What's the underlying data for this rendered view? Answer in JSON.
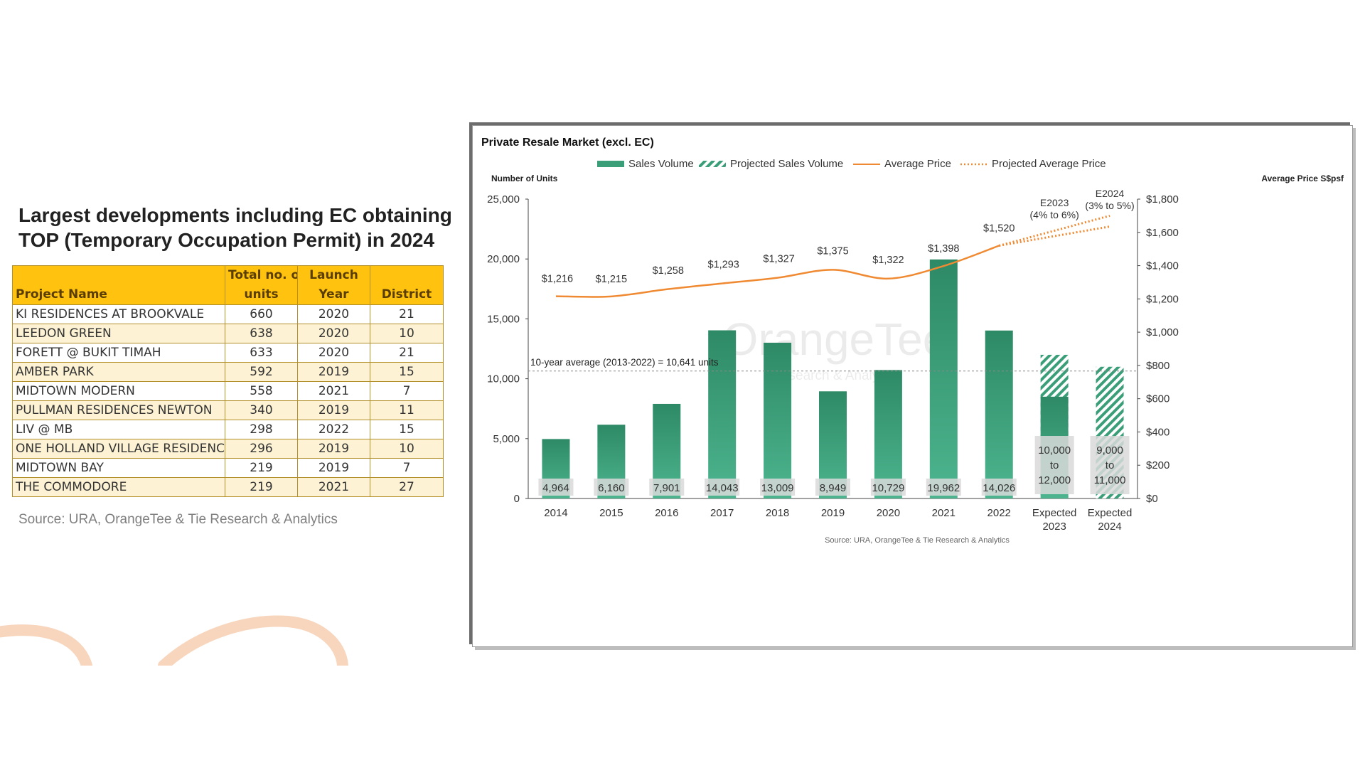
{
  "left": {
    "title_line1": "Largest developments including EC obtaining",
    "title_line2": "TOP (Temporary Occupation Permit) in 2024",
    "table": {
      "headers": {
        "name": [
          "",
          "Project Name"
        ],
        "units": [
          "Total no. of",
          "units"
        ],
        "year": [
          "Launch",
          "Year"
        ],
        "district": [
          "",
          "District"
        ]
      },
      "rows": [
        {
          "name": "KI RESIDENCES AT BROOKVALE",
          "units": "660",
          "year": "2020",
          "district": "21"
        },
        {
          "name": "LEEDON GREEN",
          "units": "638",
          "year": "2020",
          "district": "10"
        },
        {
          "name": "FORETT @ BUKIT TIMAH",
          "units": "633",
          "year": "2020",
          "district": "21"
        },
        {
          "name": "AMBER PARK",
          "units": "592",
          "year": "2019",
          "district": "15"
        },
        {
          "name": "MIDTOWN MODERN",
          "units": "558",
          "year": "2021",
          "district": "7"
        },
        {
          "name": "PULLMAN RESIDENCES NEWTON",
          "units": "340",
          "year": "2019",
          "district": "11"
        },
        {
          "name": "LIV @ MB",
          "units": "298",
          "year": "2022",
          "district": "15"
        },
        {
          "name": "ONE HOLLAND VILLAGE RESIDENCES",
          "units": "296",
          "year": "2019",
          "district": "10"
        },
        {
          "name": "MIDTOWN BAY",
          "units": "219",
          "year": "2019",
          "district": "7"
        },
        {
          "name": "THE COMMODORE",
          "units": "219",
          "year": "2021",
          "district": "27"
        }
      ]
    },
    "source": "Source: URA, OrangeTee & Tie Research & Analytics"
  },
  "colors": {
    "bar": "#3a9e78",
    "bar_dark": "#2e8a66",
    "line": "#f08a32",
    "table_header": "#ffc20e",
    "table_alt_row": "#fdf3d4",
    "squiggle": "#f7d6bd"
  },
  "chart_data": {
    "type": "bar",
    "title": "Private Resale Market (excl. EC)",
    "ylabel": "Number of Units",
    "y2label": "Average Price S$psf",
    "legend": [
      "Sales Volume",
      "Projected Sales Volume",
      "Average Price",
      "Projected Average Price"
    ],
    "legend_position": "top",
    "categories": [
      "2014",
      "2015",
      "2016",
      "2017",
      "2018",
      "2019",
      "2020",
      "2021",
      "2022",
      "Expected 2023",
      "Expected 2024"
    ],
    "ylim": [
      0,
      25000
    ],
    "y_ticks": [
      "0",
      "5,000",
      "10,000",
      "15,000",
      "20,000",
      "25,000"
    ],
    "y2lim": [
      0,
      1800
    ],
    "y2_ticks": [
      "$0",
      "$200",
      "$400",
      "$600",
      "$800",
      "$1,000",
      "$1,200",
      "$1,400",
      "$1,600",
      "$1,800"
    ],
    "series": [
      {
        "name": "Sales Volume",
        "values": [
          4964,
          6160,
          7901,
          14043,
          13009,
          8949,
          10729,
          19962,
          14026,
          8500,
          null
        ]
      },
      {
        "name": "Projected Sales Volume",
        "values": [
          null,
          null,
          null,
          null,
          null,
          null,
          null,
          null,
          null,
          12000,
          11000
        ]
      },
      {
        "name": "Average Price",
        "axis": "right",
        "values": [
          1216,
          1215,
          1258,
          1293,
          1327,
          1375,
          1322,
          1398,
          1520,
          null,
          null
        ]
      },
      {
        "name": "Projected Average Price",
        "axis": "right",
        "low": [
          1520,
          1635
        ],
        "high": [
          1520,
          1700
        ],
        "x": [
          "2022",
          "Expected 2024"
        ]
      }
    ],
    "bar_labels": [
      "4,964",
      "6,160",
      "7,901",
      "14,043",
      "13,009",
      "8,949",
      "10,729",
      "19,962",
      "14,026",
      "10,000\nto\n12,000",
      "9,000\nto\n11,000"
    ],
    "price_labels": [
      "$1,216",
      "$1,215",
      "$1,258",
      "$1,293",
      "$1,327",
      "$1,375",
      "$1,322",
      "$1,398",
      "$1,520"
    ],
    "projection_labels": [
      {
        "text": "E2023\n(4% to 6%)",
        "category": "Expected 2023"
      },
      {
        "text": "E2024\n(3% to 5%)",
        "category": "Expected 2024"
      }
    ],
    "average_line": {
      "value": 10641,
      "label": "10-year average (2013-2022) = 10,641 units"
    },
    "watermark": "OrangeTee",
    "watermark_sub": "Research & Analytics",
    "source": "Source: URA, OrangeTee & Tie Research & Analytics",
    "grid": false
  }
}
